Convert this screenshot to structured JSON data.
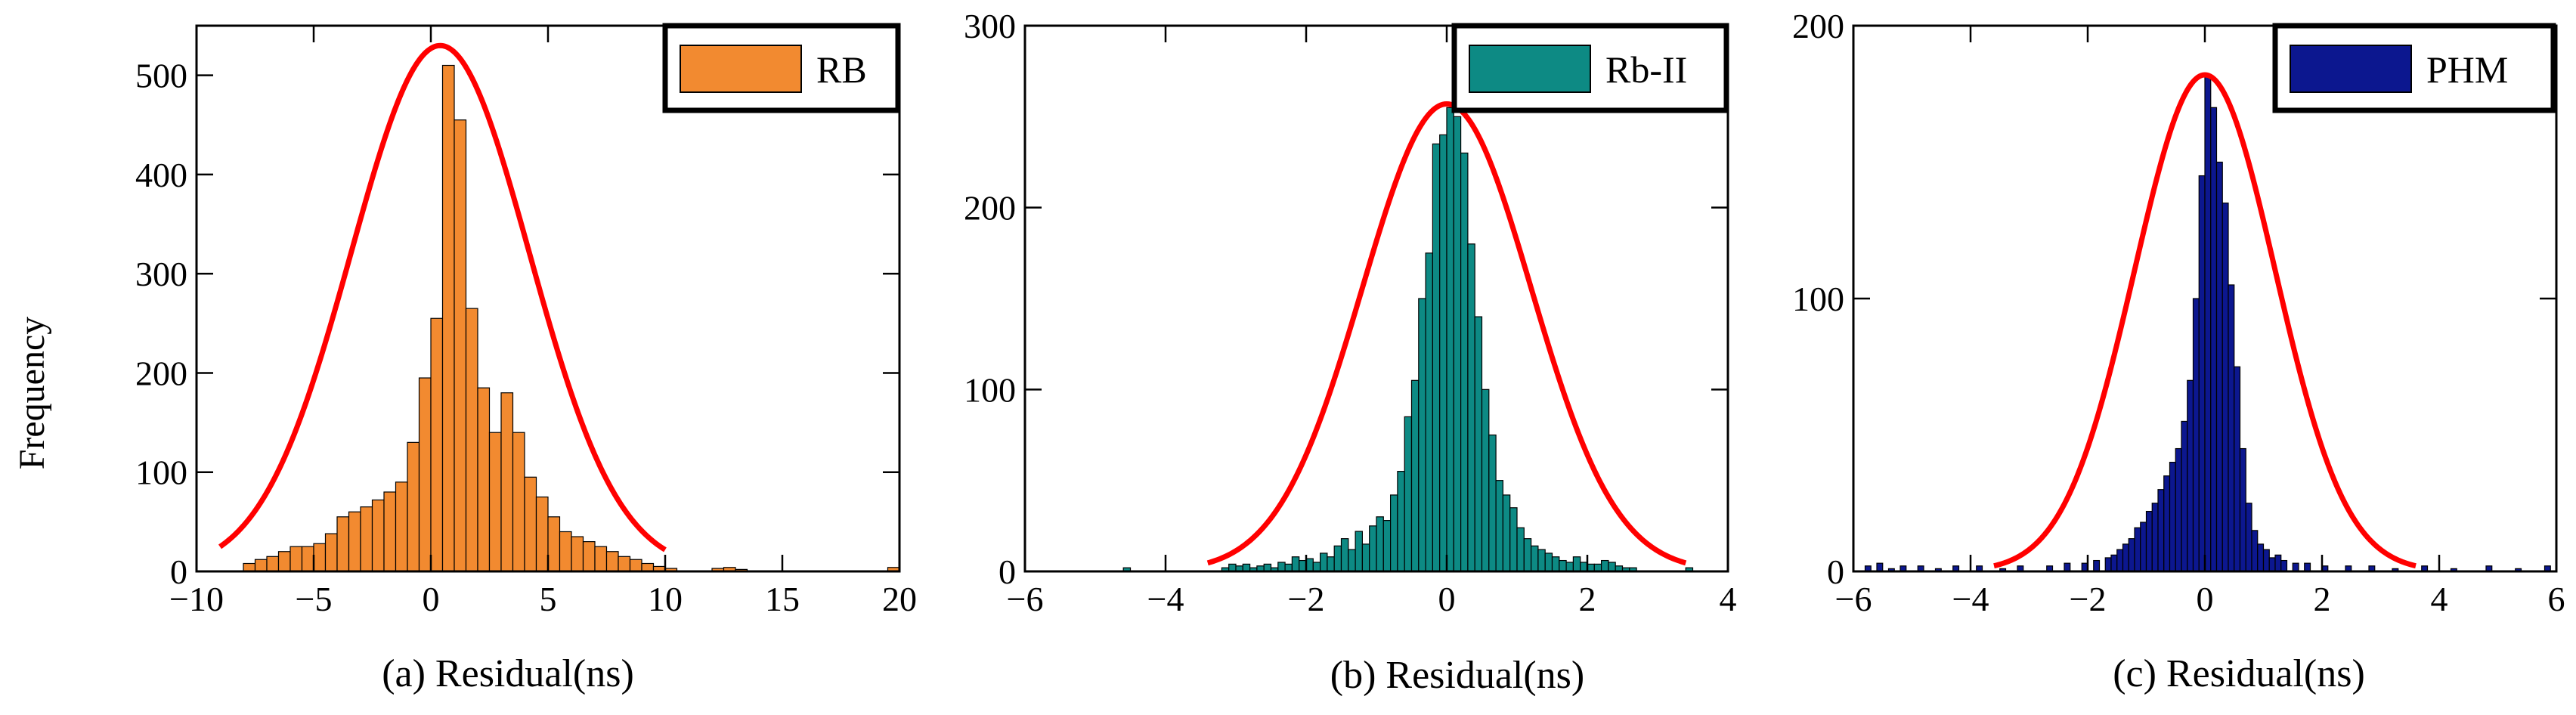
{
  "figure": {
    "ylabel": "Frequency",
    "fit_color": "#ff0000"
  },
  "chart_data": [
    {
      "type": "bar",
      "panel": "a",
      "legend": "RB",
      "legend_position": "top-right",
      "color": "#f28a30",
      "xlabel": "(a) Residual(ns)",
      "xlim": [
        -10,
        20
      ],
      "ylim": [
        0,
        550
      ],
      "xticks": [
        -10,
        -5,
        0,
        5,
        10,
        15,
        20
      ],
      "xtick_labels": [
        "−10",
        "−5",
        "0",
        "5",
        "10",
        "15",
        "20"
      ],
      "yticks": [
        0,
        100,
        200,
        300,
        400,
        500
      ],
      "bin_width": 0.5,
      "bin_starts": [
        -8,
        -7.5,
        -7,
        -6.5,
        -6,
        -5.5,
        -5,
        -4.5,
        -4,
        -3.5,
        -3,
        -2.5,
        -2,
        -1.5,
        -1,
        -0.5,
        0,
        0.5,
        1,
        1.5,
        2,
        2.5,
        3,
        3.5,
        4,
        4.5,
        5,
        5.5,
        6,
        6.5,
        7,
        7.5,
        8,
        8.5,
        9,
        9.5,
        10,
        12,
        12.5,
        13,
        19.5
      ],
      "values": [
        8,
        12,
        15,
        20,
        25,
        25,
        28,
        38,
        55,
        60,
        65,
        72,
        80,
        90,
        130,
        195,
        255,
        510,
        455,
        265,
        185,
        140,
        180,
        140,
        95,
        75,
        55,
        40,
        35,
        30,
        25,
        20,
        15,
        12,
        8,
        5,
        3,
        3,
        4,
        2,
        4
      ],
      "fit": {
        "mu": 0.4,
        "sigma": 3.8,
        "peak": 530,
        "range": [
          -9,
          10
        ]
      }
    },
    {
      "type": "bar",
      "panel": "b",
      "legend": "Rb-II",
      "legend_position": "top-right",
      "color": "#0d8a84",
      "xlabel": "(b) Residual(ns)",
      "xlim": [
        -6,
        4
      ],
      "ylim": [
        0,
        300
      ],
      "xticks": [
        -6,
        -4,
        -2,
        0,
        2,
        4
      ],
      "xtick_labels": [
        "−6",
        "−4",
        "−2",
        "0",
        "2",
        "4"
      ],
      "yticks": [
        0,
        100,
        200,
        300
      ],
      "bin_width": 0.1,
      "bin_starts": [
        -4.6,
        -3.2,
        -3.1,
        -3,
        -2.9,
        -2.8,
        -2.7,
        -2.6,
        -2.5,
        -2.4,
        -2.3,
        -2.2,
        -2.1,
        -2,
        -1.9,
        -1.8,
        -1.7,
        -1.6,
        -1.5,
        -1.4,
        -1.3,
        -1.2,
        -1.1,
        -1,
        -0.9,
        -0.8,
        -0.7,
        -0.6,
        -0.5,
        -0.4,
        -0.3,
        -0.2,
        -0.1,
        0,
        0.1,
        0.2,
        0.3,
        0.4,
        0.5,
        0.6,
        0.7,
        0.8,
        0.9,
        1,
        1.1,
        1.2,
        1.3,
        1.4,
        1.5,
        1.6,
        1.7,
        1.8,
        1.9,
        2,
        2.1,
        2.2,
        2.3,
        2.4,
        2.5,
        2.6,
        3.4
      ],
      "values": [
        2,
        2,
        4,
        3,
        4,
        2,
        3,
        4,
        2,
        5,
        4,
        8,
        6,
        7,
        5,
        10,
        8,
        14,
        18,
        12,
        22,
        15,
        25,
        30,
        28,
        42,
        55,
        85,
        105,
        150,
        175,
        235,
        240,
        255,
        250,
        230,
        180,
        140,
        100,
        75,
        50,
        42,
        35,
        24,
        18,
        14,
        12,
        10,
        8,
        6,
        5,
        8,
        5,
        4,
        4,
        6,
        5,
        3,
        2,
        2,
        2
      ],
      "fit": {
        "mu": 0.0,
        "sigma": 1.2,
        "peak": 257,
        "range": [
          -3.4,
          3.4
        ]
      }
    },
    {
      "type": "bar",
      "panel": "c",
      "legend": "PHM",
      "legend_position": "top-right",
      "color": "#0c178f",
      "xlabel": "(c) Residual(ns)",
      "xlim": [
        -6,
        6
      ],
      "ylim": [
        0,
        200
      ],
      "xticks": [
        -6,
        -4,
        -2,
        0,
        2,
        4,
        6
      ],
      "xtick_labels": [
        "−6",
        "−4",
        "−2",
        "0",
        "2",
        "4",
        "6"
      ],
      "yticks": [
        0,
        100,
        200
      ],
      "bin_width": 0.1,
      "bin_starts": [
        -5.8,
        -5.6,
        -5.4,
        -5.2,
        -4.9,
        -4.6,
        -4.3,
        -3.9,
        -3.5,
        -3.2,
        -2.7,
        -2.4,
        -2.1,
        -1.9,
        -1.7,
        -1.6,
        -1.5,
        -1.4,
        -1.3,
        -1.2,
        -1.1,
        -1,
        -0.9,
        -0.8,
        -0.7,
        -0.6,
        -0.5,
        -0.4,
        -0.3,
        -0.2,
        -0.1,
        0,
        0.1,
        0.2,
        0.3,
        0.4,
        0.5,
        0.6,
        0.7,
        0.8,
        0.9,
        1,
        1.1,
        1.2,
        1.3,
        1.5,
        1.7,
        2,
        2.4,
        2.8,
        3.2,
        3.7,
        4.2,
        4.8,
        5.3,
        5.8
      ],
      "values": [
        2,
        3,
        1,
        2,
        2,
        1,
        2,
        2,
        1,
        2,
        2,
        3,
        3,
        4,
        5,
        6,
        8,
        10,
        12,
        16,
        18,
        22,
        25,
        30,
        35,
        40,
        45,
        55,
        70,
        100,
        145,
        182,
        170,
        150,
        135,
        105,
        75,
        45,
        25,
        15,
        10,
        8,
        5,
        6,
        4,
        3,
        3,
        2,
        2,
        2,
        1,
        2,
        1,
        2,
        1,
        2
      ],
      "fit": {
        "mu": 0.0,
        "sigma": 1.2,
        "peak": 182,
        "range": [
          -3.6,
          3.6
        ]
      }
    }
  ]
}
